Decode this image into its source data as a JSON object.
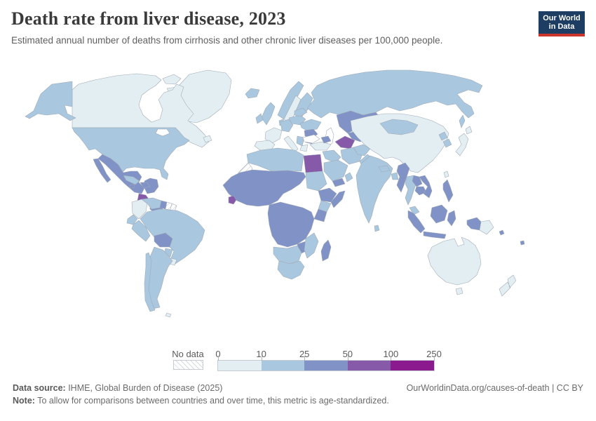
{
  "header": {
    "title": "Death rate from liver disease, 2023",
    "subtitle": "Estimated annual number of deaths from cirrhosis and other chronic liver diseases per 100,000 people.",
    "logo_line1": "Our World",
    "logo_line2": "in Data",
    "logo_bg": "#1d3d63",
    "logo_accent": "#cc352c"
  },
  "legend": {
    "no_data_label": "No data",
    "tick_labels": [
      "0",
      "10",
      "25",
      "50",
      "100",
      "250"
    ],
    "bin_colors": [
      "#e3eef3",
      "#a9c7df",
      "#8193c6",
      "#8659a9",
      "#8c1a8f"
    ]
  },
  "footer": {
    "source_label": "Data source:",
    "source_text": " IHME, Global Burden of Disease (2025)",
    "link_text": "OurWorldinData.org/causes-of-death | CC BY",
    "note_label": "Note:",
    "note_text": " To allow for comparisons between countries and over time, this metric is age-standardized."
  },
  "chart_data": {
    "type": "choropleth_map",
    "title": "Death rate from liver disease, 2023",
    "metric": "Estimated annual number of deaths from cirrhosis and other chronic liver diseases per 100,000 people",
    "year": 2023,
    "legend_bins": [
      {
        "range": "0-10",
        "color": "#e3eef3"
      },
      {
        "range": "10-25",
        "color": "#a9c7df"
      },
      {
        "range": "25-50",
        "color": "#8193c6"
      },
      {
        "range": "50-100",
        "color": "#8659a9"
      },
      {
        "range": "100-250",
        "color": "#8c1a8f"
      },
      {
        "range": "No data",
        "color": "hatched"
      }
    ],
    "regions": [
      {
        "name": "Canada",
        "bin": "0-10"
      },
      {
        "name": "Greenland",
        "bin": "0-10"
      },
      {
        "name": "United States",
        "bin": "10-25"
      },
      {
        "name": "Mexico",
        "bin": "25-50"
      },
      {
        "name": "Guatemala",
        "bin": "25-50"
      },
      {
        "name": "El Salvador",
        "bin": "50-100"
      },
      {
        "name": "Honduras",
        "bin": "25-50"
      },
      {
        "name": "Nicaragua",
        "bin": "25-50"
      },
      {
        "name": "Costa Rica",
        "bin": "10-25"
      },
      {
        "name": "Panama",
        "bin": "10-25"
      },
      {
        "name": "Cuba",
        "bin": "10-25"
      },
      {
        "name": "Haiti",
        "bin": "25-50"
      },
      {
        "name": "Dominican Republic",
        "bin": "25-50"
      },
      {
        "name": "Colombia",
        "bin": "0-10"
      },
      {
        "name": "Venezuela",
        "bin": "10-25"
      },
      {
        "name": "Guyana",
        "bin": "25-50"
      },
      {
        "name": "Suriname",
        "bin": "No data"
      },
      {
        "name": "French Guiana",
        "bin": "No data"
      },
      {
        "name": "Ecuador",
        "bin": "10-25"
      },
      {
        "name": "Peru",
        "bin": "10-25"
      },
      {
        "name": "Brazil",
        "bin": "10-25"
      },
      {
        "name": "Bolivia",
        "bin": "25-50"
      },
      {
        "name": "Paraguay",
        "bin": "10-25"
      },
      {
        "name": "Chile",
        "bin": "10-25"
      },
      {
        "name": "Argentina",
        "bin": "10-25"
      },
      {
        "name": "Uruguay",
        "bin": "0-10"
      },
      {
        "name": "Iceland",
        "bin": "10-25"
      },
      {
        "name": "United Kingdom",
        "bin": "10-25"
      },
      {
        "name": "Ireland",
        "bin": "10-25"
      },
      {
        "name": "France",
        "bin": "0-10"
      },
      {
        "name": "Spain",
        "bin": "0-10"
      },
      {
        "name": "Italy",
        "bin": "0-10"
      },
      {
        "name": "Greece",
        "bin": "0-10"
      },
      {
        "name": "Germany",
        "bin": "10-25"
      },
      {
        "name": "Poland",
        "bin": "10-25"
      },
      {
        "name": "Ukraine",
        "bin": "10-25"
      },
      {
        "name": "Romania",
        "bin": "25-50"
      },
      {
        "name": "Bulgaria",
        "bin": "25-50"
      },
      {
        "name": "Norway",
        "bin": "10-25"
      },
      {
        "name": "Sweden",
        "bin": "0-10"
      },
      {
        "name": "Finland",
        "bin": "10-25"
      },
      {
        "name": "Russia",
        "bin": "10-25"
      },
      {
        "name": "Turkey",
        "bin": "0-10"
      },
      {
        "name": "Saudi Arabia",
        "bin": "10-25"
      },
      {
        "name": "Iraq",
        "bin": "10-25"
      },
      {
        "name": "Iran",
        "bin": "10-25"
      },
      {
        "name": "Yemen",
        "bin": "25-50"
      },
      {
        "name": "Kazakhstan",
        "bin": "25-50"
      },
      {
        "name": "Uzbekistan",
        "bin": "25-50"
      },
      {
        "name": "Turkmenistan",
        "bin": "50-100"
      },
      {
        "name": "Afghanistan",
        "bin": "10-25"
      },
      {
        "name": "Pakistan",
        "bin": "10-25"
      },
      {
        "name": "India",
        "bin": "10-25"
      },
      {
        "name": "Bangladesh",
        "bin": "10-25"
      },
      {
        "name": "China",
        "bin": "0-10"
      },
      {
        "name": "Mongolia",
        "bin": "10-25"
      },
      {
        "name": "Japan",
        "bin": "0-10"
      },
      {
        "name": "South Korea",
        "bin": "10-25"
      },
      {
        "name": "North Korea",
        "bin": "10-25"
      },
      {
        "name": "Myanmar",
        "bin": "25-50"
      },
      {
        "name": "Thailand",
        "bin": "10-25"
      },
      {
        "name": "Laos",
        "bin": "25-50"
      },
      {
        "name": "Cambodia",
        "bin": "25-50"
      },
      {
        "name": "Vietnam",
        "bin": "25-50"
      },
      {
        "name": "Malaysia",
        "bin": "10-25"
      },
      {
        "name": "Indonesia",
        "bin": "25-50"
      },
      {
        "name": "Philippines",
        "bin": "25-50"
      },
      {
        "name": "Papua New Guinea",
        "bin": "0-10"
      },
      {
        "name": "Morocco",
        "bin": "10-25"
      },
      {
        "name": "Algeria",
        "bin": "10-25"
      },
      {
        "name": "Tunisia",
        "bin": "10-25"
      },
      {
        "name": "Libya",
        "bin": "10-25"
      },
      {
        "name": "Egypt",
        "bin": "50-100"
      },
      {
        "name": "Western Sahara",
        "bin": "No data"
      },
      {
        "name": "Mauritania",
        "bin": "25-50"
      },
      {
        "name": "Mali",
        "bin": "25-50"
      },
      {
        "name": "Niger",
        "bin": "25-50"
      },
      {
        "name": "Chad",
        "bin": "25-50"
      },
      {
        "name": "Senegal",
        "bin": "25-50"
      },
      {
        "name": "Nigeria",
        "bin": "25-50"
      },
      {
        "name": "Liberia",
        "bin": "50-100"
      },
      {
        "name": "Sudan",
        "bin": "10-25"
      },
      {
        "name": "Ethiopia",
        "bin": "25-50"
      },
      {
        "name": "Somalia",
        "bin": "25-50"
      },
      {
        "name": "Kenya",
        "bin": "10-25"
      },
      {
        "name": "Tanzania",
        "bin": "25-50"
      },
      {
        "name": "DR Congo",
        "bin": "25-50"
      },
      {
        "name": "Angola",
        "bin": "25-50"
      },
      {
        "name": "Zambia",
        "bin": "25-50"
      },
      {
        "name": "Zimbabwe",
        "bin": "25-50"
      },
      {
        "name": "Mozambique",
        "bin": "10-25"
      },
      {
        "name": "Namibia",
        "bin": "10-25"
      },
      {
        "name": "Botswana",
        "bin": "10-25"
      },
      {
        "name": "South Africa",
        "bin": "10-25"
      },
      {
        "name": "Madagascar",
        "bin": "25-50"
      },
      {
        "name": "Australia",
        "bin": "0-10"
      },
      {
        "name": "New Zealand",
        "bin": "0-10"
      }
    ]
  }
}
